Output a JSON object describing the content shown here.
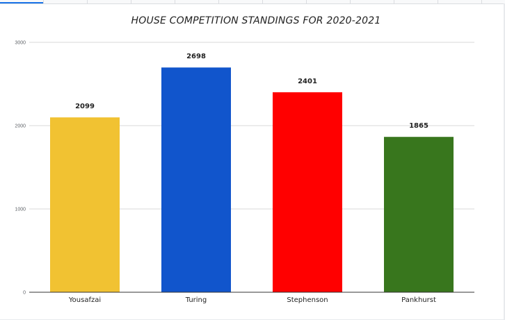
{
  "chart_data": {
    "type": "bar",
    "title": "HOUSE COMPETITION STANDINGS FOR 2020-2021",
    "categories": [
      "Yousafzai",
      "Turing",
      "Stephenson",
      "Pankhurst"
    ],
    "values": [
      2099,
      2698,
      2401,
      1865
    ],
    "colors": [
      "#f1c232",
      "#1155cc",
      "#ff0000",
      "#38761d"
    ],
    "data_labels": [
      "2099",
      "2698",
      "2401",
      "1865"
    ],
    "ylim": [
      0,
      3000
    ],
    "yticks": [
      0,
      1000,
      2000,
      3000
    ],
    "ytick_labels": [
      "0",
      "1000",
      "2000",
      "3000"
    ],
    "xlabel": "",
    "ylabel": "",
    "grid": true,
    "legend": "none"
  }
}
